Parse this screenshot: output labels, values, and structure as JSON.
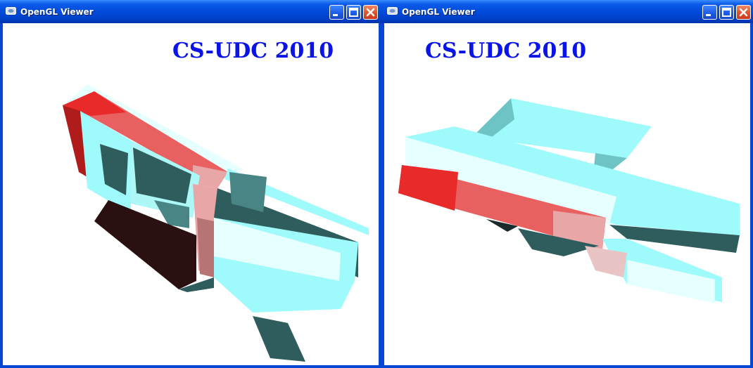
{
  "windows": [
    {
      "title": "OpenGL Viewer",
      "overlay_text": "CS-UDC 2010",
      "buttons": {
        "minimize": "minimize",
        "maximize": "maximize",
        "close": "close"
      }
    },
    {
      "title": "OpenGL Viewer",
      "overlay_text": "CS-UDC 2010",
      "buttons": {
        "minimize": "minimize",
        "maximize": "maximize",
        "close": "close"
      }
    }
  ],
  "colors": {
    "titlebar": "#0049d8",
    "overlay_text": "#0a14e6",
    "model_cyan": "#9ffbfb",
    "model_red": "#e82a2a",
    "model_dark": "#2f5c5c"
  }
}
